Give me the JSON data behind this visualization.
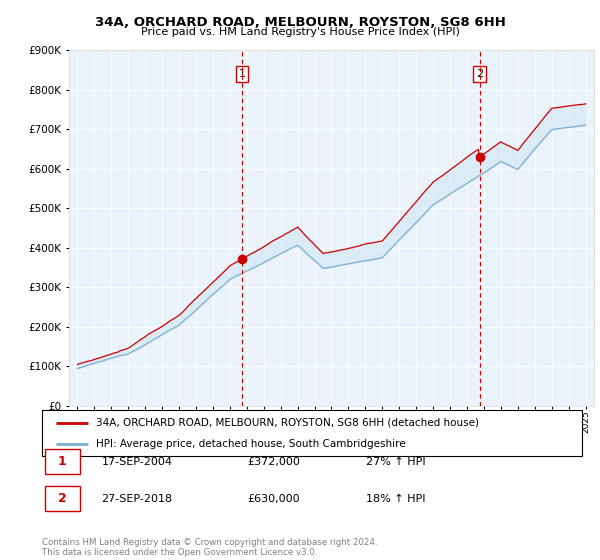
{
  "title": "34A, ORCHARD ROAD, MELBOURN, ROYSTON, SG8 6HH",
  "subtitle": "Price paid vs. HM Land Registry's House Price Index (HPI)",
  "legend_line1": "34A, ORCHARD ROAD, MELBOURN, ROYSTON, SG8 6HH (detached house)",
  "legend_line2": "HPI: Average price, detached house, South Cambridgeshire",
  "transaction1_date": "17-SEP-2004",
  "transaction1_price": "£372,000",
  "transaction1_hpi": "27% ↑ HPI",
  "transaction2_date": "27-SEP-2018",
  "transaction2_price": "£630,000",
  "transaction2_hpi": "18% ↑ HPI",
  "footer": "Contains HM Land Registry data © Crown copyright and database right 2024.\nThis data is licensed under the Open Government Licence v3.0.",
  "vline1_x": 2004.72,
  "vline2_x": 2018.74,
  "dot1_x": 2004.72,
  "dot1_y": 372000,
  "dot2_x": 2018.74,
  "dot2_y": 630000,
  "red_color": "#cc0000",
  "blue_color": "#7bafd4",
  "fill_color": "#d6e8f5",
  "vline_color": "#cc0000",
  "ylim": [
    0,
    900000
  ],
  "xlim_left": 1994.5,
  "xlim_right": 2025.5,
  "chart_bg": "#eaf3fb"
}
